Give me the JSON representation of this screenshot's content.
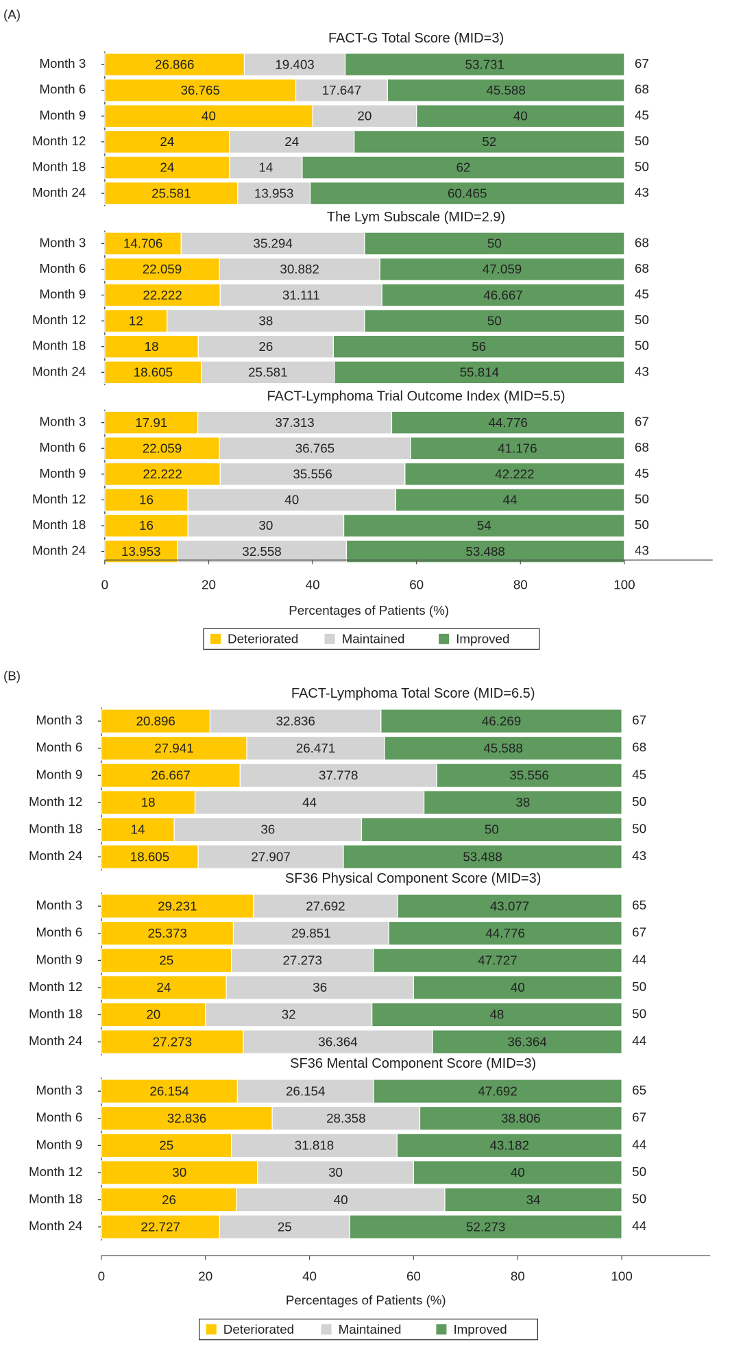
{
  "chart_data": [
    {
      "type": "stacked_bar",
      "panel_label": "(A)",
      "xlabel": "Percentages of Patients (%)",
      "xlim": [
        0,
        117
      ],
      "xticks": [
        0,
        20,
        40,
        60,
        80,
        100
      ],
      "groups": [
        {
          "title": "FACT-G Total Score (MID=3)",
          "categories": [
            "Month 3",
            "Month 6",
            "Month 9",
            "Month 12",
            "Month 18",
            "Month 24"
          ],
          "series": [
            {
              "name": "Deteriorated",
              "color": "#ffc800",
              "values": [
                26.866,
                36.765,
                40,
                24,
                24,
                25.581
              ]
            },
            {
              "name": "Maintained",
              "color": "#d3d3d3",
              "values": [
                19.403,
                17.647,
                20,
                24,
                14,
                13.953
              ]
            },
            {
              "name": "Improved",
              "color": "#5f9a5f",
              "values": [
                53.731,
                45.588,
                40,
                52,
                62,
                60.465
              ]
            }
          ],
          "n": [
            67,
            68,
            45,
            50,
            50,
            43
          ]
        },
        {
          "title": "The Lym Subscale (MID=2.9)",
          "categories": [
            "Month 3",
            "Month 6",
            "Month 9",
            "Month 12",
            "Month 18",
            "Month 24"
          ],
          "series": [
            {
              "name": "Deteriorated",
              "color": "#ffc800",
              "values": [
                14.706,
                22.059,
                22.222,
                12,
                18,
                18.605
              ]
            },
            {
              "name": "Maintained",
              "color": "#d3d3d3",
              "values": [
                35.294,
                30.882,
                31.111,
                38,
                26,
                25.581
              ]
            },
            {
              "name": "Improved",
              "color": "#5f9a5f",
              "values": [
                50,
                47.059,
                46.667,
                50,
                56,
                55.814
              ]
            }
          ],
          "n": [
            68,
            68,
            45,
            50,
            50,
            43
          ]
        },
        {
          "title": "FACT-Lymphoma Trial Outcome Index (MID=5.5)",
          "categories": [
            "Month 3",
            "Month 6",
            "Month 9",
            "Month 12",
            "Month 18",
            "Month 24"
          ],
          "series": [
            {
              "name": "Deteriorated",
              "color": "#ffc800",
              "values": [
                17.91,
                22.059,
                22.222,
                16,
                16,
                13.953
              ]
            },
            {
              "name": "Maintained",
              "color": "#d3d3d3",
              "values": [
                37.313,
                36.765,
                35.556,
                40,
                30,
                32.558
              ]
            },
            {
              "name": "Improved",
              "color": "#5f9a5f",
              "values": [
                44.776,
                41.176,
                42.222,
                44,
                54,
                53.488
              ]
            }
          ],
          "n": [
            67,
            68,
            45,
            50,
            50,
            43
          ]
        }
      ]
    },
    {
      "type": "stacked_bar",
      "panel_label": "(B)",
      "xlabel": "Percentages of Patients (%)",
      "xlim": [
        0,
        117
      ],
      "xticks": [
        0,
        20,
        40,
        60,
        80,
        100
      ],
      "groups": [
        {
          "title": "FACT-Lymphoma Total Score (MID=6.5)",
          "categories": [
            "Month 3",
            "Month 6",
            "Month 9",
            "Month 12",
            "Month 18",
            "Month 24"
          ],
          "series": [
            {
              "name": "Deteriorated",
              "color": "#ffc800",
              "values": [
                20.896,
                27.941,
                26.667,
                18,
                14,
                18.605
              ]
            },
            {
              "name": "Maintained",
              "color": "#d3d3d3",
              "values": [
                32.836,
                26.471,
                37.778,
                44,
                36,
                27.907
              ]
            },
            {
              "name": "Improved",
              "color": "#5f9a5f",
              "values": [
                46.269,
                45.588,
                35.556,
                38,
                50,
                53.488
              ]
            }
          ],
          "n": [
            67,
            68,
            45,
            50,
            50,
            43
          ]
        },
        {
          "title": "SF36 Physical Component Score (MID=3)",
          "categories": [
            "Month 3",
            "Month 6",
            "Month 9",
            "Month 12",
            "Month 18",
            "Month 24"
          ],
          "series": [
            {
              "name": "Deteriorated",
              "color": "#ffc800",
              "values": [
                29.231,
                25.373,
                25,
                24,
                20,
                27.273
              ]
            },
            {
              "name": "Maintained",
              "color": "#d3d3d3",
              "values": [
                27.692,
                29.851,
                27.273,
                36,
                32,
                36.364
              ]
            },
            {
              "name": "Improved",
              "color": "#5f9a5f",
              "values": [
                43.077,
                44.776,
                47.727,
                40,
                48,
                36.364
              ]
            }
          ],
          "n": [
            65,
            67,
            44,
            50,
            50,
            44
          ]
        },
        {
          "title": "SF36 Mental Component Score (MID=3)",
          "categories": [
            "Month 3",
            "Month 6",
            "Month 9",
            "Month 12",
            "Month 18",
            "Month 24"
          ],
          "series": [
            {
              "name": "Deteriorated",
              "color": "#ffc800",
              "values": [
                26.154,
                32.836,
                25,
                30,
                26,
                22.727
              ]
            },
            {
              "name": "Maintained",
              "color": "#d3d3d3",
              "values": [
                26.154,
                28.358,
                31.818,
                30,
                40,
                25
              ]
            },
            {
              "name": "Improved",
              "color": "#5f9a5f",
              "values": [
                47.692,
                38.806,
                43.182,
                40,
                34,
                52.273
              ]
            }
          ],
          "n": [
            65,
            67,
            44,
            50,
            50,
            44
          ]
        }
      ]
    }
  ]
}
